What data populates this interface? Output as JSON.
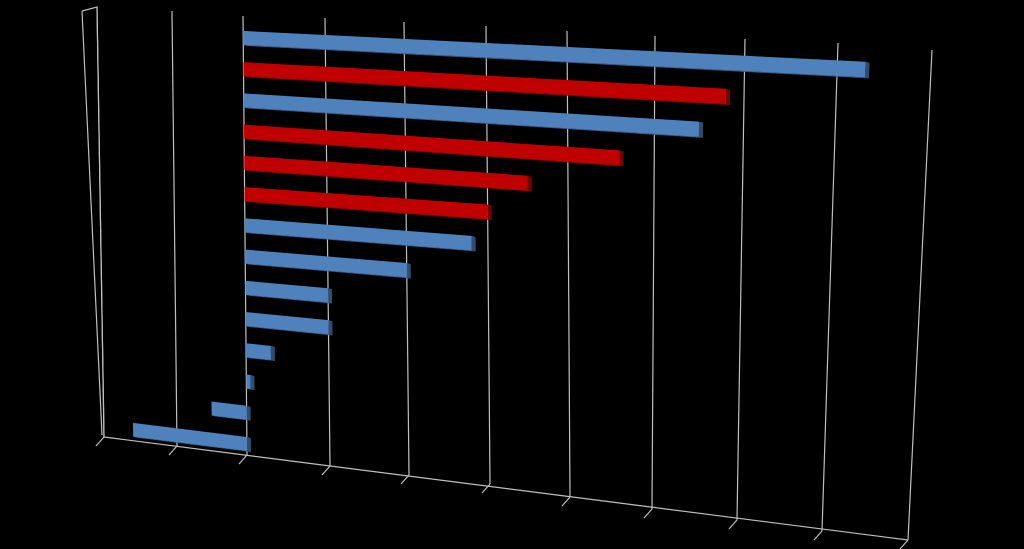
{
  "chart_data": {
    "type": "bar",
    "orientation": "horizontal",
    "style": "3d-perspective",
    "title": "",
    "xlabel": "",
    "ylabel": "",
    "grid": true,
    "legend": "none",
    "xlim": [
      -2,
      8
    ],
    "background_color": "#000000",
    "grid_color": "#bfbfbf",
    "colors": {
      "blue": "#4f81bd",
      "red": "#c00000"
    },
    "categories": [
      "",
      "",
      "",
      "",
      "",
      "",
      "",
      "",
      "",
      "",
      "",
      "",
      "",
      ""
    ],
    "values": [
      7.3,
      5.8,
      5.5,
      4.6,
      3.5,
      3.0,
      2.8,
      2.0,
      1.0,
      1.0,
      0.3,
      0.05,
      -0.5,
      -1.6
    ],
    "bar_colors": [
      "blue",
      "red",
      "blue",
      "red",
      "red",
      "red",
      "blue",
      "blue",
      "blue",
      "blue",
      "blue",
      "blue",
      "blue",
      "blue"
    ]
  }
}
